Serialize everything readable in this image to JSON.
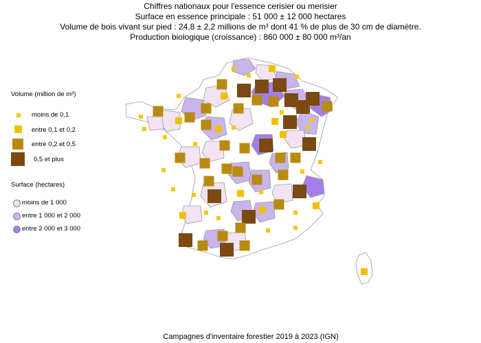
{
  "title": {
    "line1": "Chiffres nationaux pour l'essence cerisier ou merisier",
    "line2": "Surface en essence principale : 51 000 ± 12 000 hectares",
    "line3": "Volume de bois vivant sur pied : 24,8 ± 2,2 millions de m³ dont 41 % de plus de 30 cm de diamètre.",
    "line4": "Production biologique (croissance) : 860 000 ± 80 000 m³/an"
  },
  "legend": {
    "volume_heading": "Volume (million de m³)",
    "volume_classes": [
      {
        "label": "moins de 0,1",
        "color": "#f5c800"
      },
      {
        "label": "entre 0,1 et 0,2",
        "color": "#f0c000"
      },
      {
        "label": "entre 0,2 et 0,5",
        "color": "#b88a10"
      },
      {
        "label": "0,5 et plus",
        "color": "#7a4a12"
      }
    ],
    "surface_heading": "Surface (hectares)",
    "surface_classes": [
      {
        "label": "moins de 1 000",
        "color": "#f3e3f3"
      },
      {
        "label": "entre 1 000 et 2 000",
        "color": "#c9b4ee"
      },
      {
        "label": "entre 2 000 et 3 000",
        "color": "#a57ee8"
      }
    ]
  },
  "footer": "Campagnes d'inventaire forestier 2019 à 2023 (IGN)",
  "map_colors": {
    "outline": "#9a9a9a",
    "no_fill": "#ffffff"
  }
}
